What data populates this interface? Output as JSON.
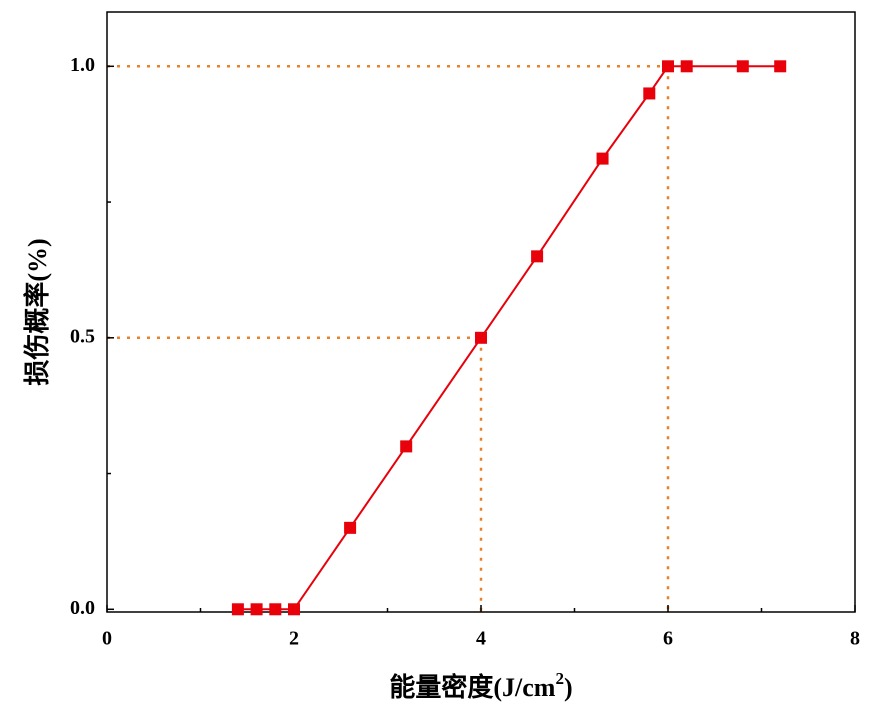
{
  "chart_data": {
    "type": "line",
    "xlabel": "能量密度(J/cm",
    "xlabel_sup": "2",
    "xlabel_end": ")",
    "ylabel": "损伤概率(%)",
    "x": [
      1.4,
      1.6,
      1.8,
      2.0,
      2.6,
      3.2,
      4.0,
      4.6,
      5.3,
      5.8,
      6.0,
      6.2,
      6.8,
      7.2
    ],
    "series": [
      {
        "color": "#e8000b",
        "values": [
          0,
          0,
          0,
          0,
          0.15,
          0.3,
          0.5,
          0.65,
          0.83,
          0.95,
          1,
          1,
          1,
          1
        ]
      }
    ],
    "xlim": [
      0,
      8
    ],
    "xticks": [
      0,
      2,
      4,
      6,
      8
    ],
    "xminor": [
      1,
      3,
      5,
      7
    ],
    "ylim": [
      -0.005,
      1.1
    ],
    "yticks": [
      {
        "value": 0,
        "label": "0.0"
      },
      {
        "value": 0.5,
        "label": "0.5"
      },
      {
        "value": 1,
        "label": "1.0"
      }
    ],
    "yminor": [
      0.25,
      0.75
    ],
    "reference_lines": [
      {
        "x": 6,
        "y": 1
      },
      {
        "x": 4,
        "y": 0.5
      }
    ],
    "reference_color": "#e8822a"
  }
}
